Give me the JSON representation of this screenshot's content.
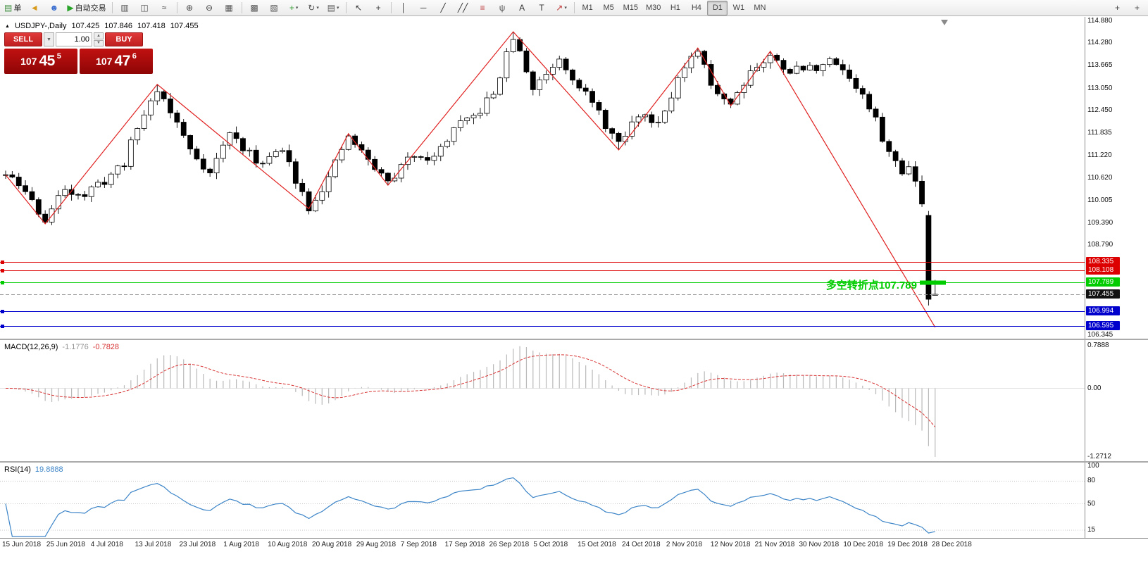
{
  "toolbar": {
    "items": [
      {
        "name": "new-order-button",
        "icon": "document-icon",
        "label": "单"
      },
      {
        "name": "alerts-button",
        "icon": "horn-icon"
      },
      {
        "name": "community-button",
        "icon": "person-icon"
      },
      {
        "name": "autotrading-button",
        "icon": "play-icon",
        "label": "自动交易"
      },
      {
        "divider": true
      },
      {
        "name": "bar-chart-button",
        "icon": "bar-chart-icon"
      },
      {
        "name": "candlestick-button",
        "icon": "candlestick-icon"
      },
      {
        "name": "line-chart-button",
        "icon": "line-chart-icon"
      },
      {
        "divider": true
      },
      {
        "name": "zoom-in-button",
        "icon": "zoom-in-icon"
      },
      {
        "name": "zoom-out-button",
        "icon": "zoom-out-icon"
      },
      {
        "name": "tile-windows-button",
        "icon": "tile-windows-icon"
      },
      {
        "divider": true
      },
      {
        "name": "cascade-windows-button",
        "icon": "cascade-icon"
      },
      {
        "name": "arrange-windows-button",
        "icon": "arrange-icon"
      },
      {
        "name": "new-chart-button",
        "icon": "new-chart-icon",
        "dropdown": true
      },
      {
        "name": "profiles-button",
        "icon": "profiles-icon",
        "dropdown": true
      },
      {
        "name": "templates-button",
        "icon": "templates-icon",
        "dropdown": true
      },
      {
        "divider": true
      },
      {
        "name": "cursor-button",
        "icon": "cursor-icon"
      },
      {
        "name": "crosshair-button",
        "icon": "crosshair-icon"
      },
      {
        "divider": true
      },
      {
        "name": "vertical-line-button",
        "icon": "vline-icon"
      },
      {
        "name": "horizontal-line-button",
        "icon": "hline-icon"
      },
      {
        "name": "trendline-button",
        "icon": "trendline-icon"
      },
      {
        "name": "equidistant-channel-button",
        "icon": "channel-icon"
      },
      {
        "name": "fibonacci-button",
        "icon": "fibonacci-icon"
      },
      {
        "name": "andrews-pitchfork-button",
        "icon": "pitchfork-icon"
      },
      {
        "name": "text-button",
        "icon": "text-icon"
      },
      {
        "name": "text-label-button",
        "icon": "label-icon"
      },
      {
        "name": "arrows-button",
        "icon": "arrow-shape-icon",
        "dropdown": true
      },
      {
        "divider": true
      }
    ],
    "timeframes": [
      "M1",
      "M5",
      "M15",
      "M30",
      "H1",
      "H4",
      "D1",
      "W1",
      "MN"
    ],
    "active_timeframe": "D1",
    "right_items": [
      {
        "name": "add-button",
        "icon": "plus-icon"
      },
      {
        "name": "corner-add-button",
        "icon": "plus-icon"
      }
    ]
  },
  "chart": {
    "header": {
      "symbol": "USDJPY-,Daily",
      "open": "107.425",
      "high": "107.846",
      "low": "107.418",
      "close": "107.455"
    },
    "trade_panel": {
      "sell_label": "SELL",
      "buy_label": "BUY",
      "volume": "1.00",
      "sell_price": {
        "figure": "107",
        "pips": "45",
        "pip_fraction": "5"
      },
      "buy_price": {
        "figure": "107",
        "pips": "47",
        "pip_fraction": "6"
      }
    },
    "annotation": {
      "text": "多空转折点107.789",
      "color": "#00cc00"
    },
    "price_axis": [
      "114.880",
      "114.280",
      "113.665",
      "113.050",
      "112.450",
      "111.835",
      "111.220",
      "110.620",
      "110.005",
      "109.390",
      "108.790",
      "106.345"
    ],
    "hlines": [
      {
        "price": 108.335,
        "label": "108.335",
        "color": "#dd0000"
      },
      {
        "price": 108.108,
        "label": "108.108",
        "color": "#dd0000"
      },
      {
        "price": 107.789,
        "label": "107.789",
        "color": "#00cc00",
        "thick_segment": true
      },
      {
        "price": 107.455,
        "label": "107.455",
        "color": "#555555",
        "current": true
      },
      {
        "price": 106.994,
        "label": "106.994",
        "color": "#0000cc"
      },
      {
        "price": 106.595,
        "label": "106.595",
        "color": "#0000cc"
      }
    ]
  },
  "chart_data": {
    "type": "candlestick",
    "symbol": "USDJPY",
    "timeframe": "Daily",
    "price_range": [
      106.345,
      114.88
    ],
    "num_candles": 142,
    "seed": 11,
    "noise": 0.26,
    "wick": 0.15,
    "colors": {
      "up_candle": "#ffffff",
      "down_candle": "#000000",
      "candle_outline": "#000000",
      "zigzag": "#e02020",
      "macd_hist": "#b9b9b9",
      "macd_signal": "#d83434",
      "rsi_line": "#3d85c8"
    },
    "zigzag": [
      [
        0,
        110.7
      ],
      [
        6,
        109.37
      ],
      [
        23,
        113.16
      ],
      [
        46,
        109.78
      ],
      [
        52,
        111.82
      ],
      [
        58,
        110.42
      ],
      [
        77,
        114.59
      ],
      [
        93,
        111.38
      ],
      [
        105,
        114.15
      ],
      [
        110,
        112.58
      ],
      [
        116,
        114.06
      ],
      [
        141,
        106.56
      ]
    ],
    "price_path": [
      [
        0,
        110.7
      ],
      [
        3,
        110.25
      ],
      [
        6,
        109.45
      ],
      [
        9,
        110.35
      ],
      [
        12,
        110.15
      ],
      [
        15,
        110.55
      ],
      [
        18,
        111.05
      ],
      [
        20,
        112.0
      ],
      [
        23,
        113.05
      ],
      [
        26,
        112.1
      ],
      [
        28,
        111.4
      ],
      [
        31,
        110.75
      ],
      [
        34,
        111.85
      ],
      [
        38,
        111.05
      ],
      [
        42,
        111.35
      ],
      [
        46,
        109.85
      ],
      [
        49,
        110.6
      ],
      [
        52,
        111.75
      ],
      [
        55,
        111.1
      ],
      [
        58,
        110.5
      ],
      [
        62,
        111.3
      ],
      [
        65,
        111.15
      ],
      [
        68,
        111.95
      ],
      [
        71,
        112.25
      ],
      [
        74,
        112.9
      ],
      [
        77,
        114.45
      ],
      [
        80,
        113.05
      ],
      [
        84,
        113.9
      ],
      [
        88,
        112.9
      ],
      [
        90,
        112.35
      ],
      [
        93,
        111.5
      ],
      [
        96,
        112.35
      ],
      [
        99,
        112.15
      ],
      [
        102,
        113.3
      ],
      [
        105,
        114.05
      ],
      [
        107,
        113.15
      ],
      [
        110,
        112.65
      ],
      [
        113,
        113.55
      ],
      [
        116,
        113.9
      ],
      [
        119,
        113.55
      ],
      [
        122,
        113.6
      ],
      [
        126,
        113.8
      ],
      [
        128,
        113.35
      ],
      [
        130,
        112.85
      ],
      [
        132,
        112.15
      ],
      [
        134,
        111.3
      ],
      [
        136,
        110.75
      ],
      [
        137,
        111.05
      ],
      [
        139,
        110.0
      ],
      [
        140,
        107.3
      ],
      [
        141,
        107.45
      ]
    ],
    "final_candles": [
      [
        109.6,
        109.72,
        107.15,
        107.32
      ],
      [
        107.425,
        107.846,
        107.418,
        107.455
      ]
    ],
    "macd": {
      "label": "MACD(12,26,9)",
      "main": "-1.1776",
      "signal": "-0.7828",
      "axis": [
        "0.7888",
        "0.00",
        "-1.2712"
      ],
      "axis_values": [
        0.7888,
        0,
        -1.2712
      ]
    },
    "rsi": {
      "label": "RSI(14)",
      "value": "19.8888",
      "axis": [
        "100",
        "80",
        "50",
        "15"
      ],
      "axis_values": [
        100,
        80,
        50,
        15
      ],
      "levels": [
        80,
        50,
        15
      ]
    },
    "dates": [
      "15 Jun 2018",
      "25 Jun 2018",
      "4 Jul 2018",
      "13 Jul 2018",
      "23 Jul 2018",
      "1 Aug 2018",
      "10 Aug 2018",
      "20 Aug 2018",
      "29 Aug 2018",
      "7 Sep 2018",
      "17 Sep 2018",
      "26 Sep 2018",
      "5 Oct 2018",
      "15 Oct 2018",
      "24 Oct 2018",
      "2 Nov 2018",
      "12 Nov 2018",
      "21 Nov 2018",
      "30 Nov 2018",
      "10 Dec 2018",
      "19 Dec 2018",
      "28 Dec 2018"
    ]
  }
}
